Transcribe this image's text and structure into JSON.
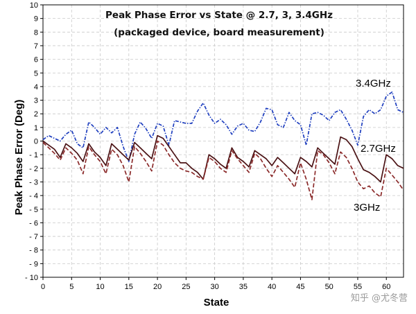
{
  "chart_data": {
    "type": "line",
    "title": "Peak Phase Error vs State @ 2.7, 3, 3.4GHz",
    "subtitle": "(packaged device, board measurement)",
    "xlabel": "State",
    "ylabel": "Peak Phase Error (Deg)",
    "xlim": [
      0,
      63
    ],
    "ylim": [
      -10,
      10
    ],
    "x_ticks": [
      0,
      5,
      10,
      15,
      20,
      25,
      30,
      35,
      40,
      45,
      50,
      55,
      60
    ],
    "y_ticks": [
      10,
      9,
      8,
      7,
      6,
      5,
      4,
      3,
      2,
      1,
      0,
      -1,
      -2,
      -3,
      -4,
      -5,
      -6,
      -7,
      -8,
      -9,
      -10
    ],
    "grid": true,
    "x": [
      0,
      1,
      2,
      3,
      4,
      5,
      6,
      7,
      8,
      9,
      10,
      11,
      12,
      13,
      14,
      15,
      16,
      17,
      18,
      19,
      20,
      21,
      22,
      23,
      24,
      25,
      26,
      27,
      28,
      29,
      30,
      31,
      32,
      33,
      34,
      35,
      36,
      37,
      38,
      39,
      40,
      41,
      42,
      43,
      44,
      45,
      46,
      47,
      48,
      49,
      50,
      51,
      52,
      53,
      54,
      55,
      56,
      57,
      58,
      59,
      60,
      61,
      62,
      63
    ],
    "series": [
      {
        "name": "3.4GHz",
        "label": "3.4GHz",
        "color": "#1f3fbf",
        "style": "dash-dot",
        "values": [
          0.1,
          0.4,
          0.2,
          0.0,
          0.5,
          0.8,
          -0.2,
          -0.5,
          1.4,
          1.0,
          0.5,
          1.0,
          0.6,
          1.0,
          -0.4,
          -1.5,
          0.5,
          1.4,
          0.9,
          0.2,
          1.3,
          1.1,
          -0.3,
          1.5,
          1.4,
          1.3,
          1.3,
          2.2,
          2.8,
          1.9,
          1.3,
          1.6,
          1.2,
          0.5,
          1.1,
          1.3,
          0.8,
          0.7,
          1.4,
          2.4,
          2.3,
          1.2,
          1.0,
          2.1,
          1.5,
          1.2,
          -0.3,
          2.0,
          2.1,
          1.9,
          1.5,
          2.1,
          2.3,
          1.6,
          0.8,
          -0.3,
          1.8,
          2.3,
          2.0,
          2.3,
          3.3,
          3.6,
          2.3,
          2.1
        ]
      },
      {
        "name": "2.7GHz",
        "label": "2.7GHz",
        "color": "#4a1214",
        "style": "solid",
        "values": [
          0.0,
          -0.3,
          -0.6,
          -1.2,
          -0.2,
          -0.5,
          -0.9,
          -1.5,
          -0.2,
          -0.8,
          -1.2,
          -1.8,
          -0.2,
          -0.6,
          -1.0,
          -1.4,
          -0.1,
          -0.5,
          -0.9,
          -1.3,
          0.4,
          0.2,
          -0.4,
          -1.0,
          -1.6,
          -1.6,
          -2.0,
          -2.3,
          -2.8,
          -1.0,
          -1.3,
          -1.7,
          -2.0,
          -0.5,
          -1.2,
          -1.5,
          -1.9,
          -0.7,
          -1.0,
          -1.3,
          -1.8,
          -1.2,
          -1.6,
          -2.0,
          -2.4,
          -1.2,
          -1.5,
          -1.9,
          -0.5,
          -0.9,
          -1.3,
          -1.7,
          0.3,
          0.1,
          -0.4,
          -1.3,
          -2.1,
          -2.3,
          -2.6,
          -3.0,
          -1.0,
          -1.3,
          -1.8,
          -2.0
        ]
      },
      {
        "name": "3GHz",
        "label": "3GHz",
        "color": "#8b2a2a",
        "style": "dashed",
        "values": [
          -0.1,
          -0.5,
          -0.9,
          -1.4,
          -0.5,
          -0.9,
          -1.4,
          -2.4,
          -0.4,
          -1.0,
          -1.5,
          -2.4,
          -0.6,
          -1.0,
          -1.8,
          -3.0,
          -0.4,
          -0.9,
          -1.5,
          -2.2,
          0.0,
          -0.3,
          -1.0,
          -1.6,
          -2.0,
          -2.2,
          -2.3,
          -2.6,
          -2.8,
          -1.2,
          -1.5,
          -2.0,
          -2.3,
          -0.7,
          -1.3,
          -1.8,
          -2.3,
          -0.9,
          -1.3,
          -2.0,
          -2.6,
          -1.8,
          -2.3,
          -2.8,
          -3.4,
          -1.6,
          -2.8,
          -4.3,
          -0.7,
          -1.0,
          -1.6,
          -2.4,
          -0.8,
          -1.2,
          -2.0,
          -3.0,
          -3.5,
          -3.3,
          -3.8,
          -4.1,
          -2.0,
          -2.5,
          -3.0,
          -3.6
        ]
      }
    ],
    "watermark": "知乎 @尤冬营"
  }
}
